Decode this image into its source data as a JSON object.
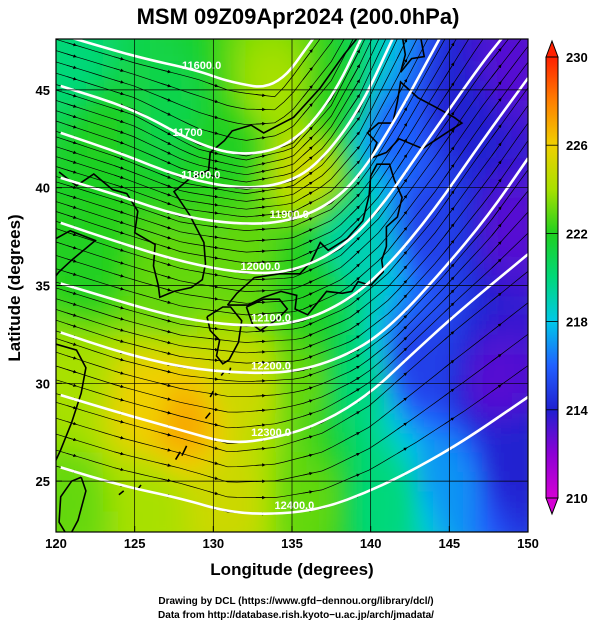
{
  "title": "MSM 09Z09Apr2024 (200.0hPa)",
  "xlabel": "Longitude (degrees)",
  "ylabel": "Latitude  (degrees)",
  "x_ticks": [
    120,
    125,
    130,
    135,
    140,
    145,
    150
  ],
  "y_ticks": [
    25,
    30,
    35,
    40,
    45
  ],
  "colorbar": {
    "ticks": [
      210,
      214,
      218,
      222,
      226,
      230
    ],
    "stops": [
      "#d400d4",
      "#8c00d4",
      "#2020d0",
      "#2060ff",
      "#00c8e8",
      "#00d87a",
      "#20d020",
      "#a8e000",
      "#f0d000",
      "#ff8000",
      "#ff2000"
    ]
  },
  "contour_labels": [
    "11600.0",
    "11700",
    "11800.0",
    "11900.0",
    "12000.0",
    "12100.0",
    "12200.0",
    "12300.0",
    "12400.0"
  ],
  "credits": {
    "line1": "Drawing by DCL (https://www.gfd−dennou.org/library/dcl/)",
    "line2": "Data from http://database.rish.kyoto−u.ac.jp/arch/jmadata/"
  },
  "chart_data": {
    "type": "heatmap",
    "title": "MSM 09Z09Apr2024 (200.0hPa)",
    "xlabel": "Longitude (degrees)",
    "ylabel": "Latitude  (degrees)",
    "xlim": [
      120,
      150
    ],
    "ylim": [
      22.4,
      47.6
    ],
    "colorbar_range": [
      210,
      230
    ],
    "grid": true,
    "temperature_samples": [
      {
        "lon": 121,
        "lat": 46,
        "t": 220
      },
      {
        "lon": 123,
        "lat": 43,
        "t": 222
      },
      {
        "lon": 127,
        "lat": 44,
        "t": 221
      },
      {
        "lon": 131,
        "lat": 42,
        "t": 222
      },
      {
        "lon": 134,
        "lat": 45,
        "t": 224
      },
      {
        "lon": 136,
        "lat": 41,
        "t": 225
      },
      {
        "lon": 138,
        "lat": 44,
        "t": 222
      },
      {
        "lon": 141,
        "lat": 43,
        "t": 216
      },
      {
        "lon": 146,
        "lat": 44,
        "t": 214
      },
      {
        "lon": 149,
        "lat": 46,
        "t": 213
      },
      {
        "lon": 122,
        "lat": 36,
        "t": 222
      },
      {
        "lon": 127,
        "lat": 35,
        "t": 223
      },
      {
        "lon": 132,
        "lat": 36,
        "t": 223
      },
      {
        "lon": 136,
        "lat": 35,
        "t": 222
      },
      {
        "lon": 139,
        "lat": 37,
        "t": 219
      },
      {
        "lon": 144,
        "lat": 38,
        "t": 215
      },
      {
        "lon": 149,
        "lat": 38,
        "t": 213
      },
      {
        "lon": 121,
        "lat": 30,
        "t": 224
      },
      {
        "lon": 126,
        "lat": 29,
        "t": 226
      },
      {
        "lon": 128,
        "lat": 28,
        "t": 227
      },
      {
        "lon": 132,
        "lat": 30,
        "t": 225
      },
      {
        "lon": 136,
        "lat": 30,
        "t": 223
      },
      {
        "lon": 139,
        "lat": 30,
        "t": 220
      },
      {
        "lon": 143,
        "lat": 31,
        "t": 215
      },
      {
        "lon": 148,
        "lat": 30,
        "t": 213
      },
      {
        "lon": 121,
        "lat": 24,
        "t": 223
      },
      {
        "lon": 126,
        "lat": 24,
        "t": 224
      },
      {
        "lon": 131,
        "lat": 24,
        "t": 225
      },
      {
        "lon": 136,
        "lat": 24,
        "t": 223
      },
      {
        "lon": 141,
        "lat": 24,
        "t": 220
      },
      {
        "lon": 145,
        "lat": 25,
        "t": 217
      },
      {
        "lon": 149,
        "lat": 26,
        "t": 214
      }
    ],
    "height_contours": [
      {
        "label": "11600.0",
        "pts": [
          [
            120.4,
            47.8
          ],
          [
            125,
            46.7
          ],
          [
            129,
            46
          ],
          [
            131,
            45.4
          ],
          [
            134,
            45
          ],
          [
            136.5,
            47.8
          ]
        ]
      },
      {
        "label": "11700",
        "pts": [
          [
            120.3,
            45.2
          ],
          [
            125,
            44
          ],
          [
            129,
            42.2
          ],
          [
            132,
            41.6
          ],
          [
            135,
            42.2
          ],
          [
            137.5,
            44.5
          ],
          [
            139.5,
            47.8
          ]
        ]
      },
      {
        "label": "11800.0",
        "pts": [
          [
            120.3,
            42.8
          ],
          [
            124,
            41.8
          ],
          [
            128,
            40.5
          ],
          [
            132,
            39.9
          ],
          [
            135,
            40.3
          ],
          [
            137,
            41.5
          ],
          [
            139.3,
            44
          ],
          [
            141.5,
            47.8
          ]
        ]
      },
      {
        "label": "11900.0",
        "pts": [
          [
            120.3,
            40.5
          ],
          [
            124,
            39.6
          ],
          [
            128,
            38.5
          ],
          [
            132,
            38.1
          ],
          [
            135,
            38.3
          ],
          [
            137.5,
            39.2
          ],
          [
            139.5,
            40.8
          ],
          [
            141.8,
            43.8
          ],
          [
            144.5,
            47.8
          ]
        ]
      },
      {
        "label": "12000.0",
        "pts": [
          [
            120.3,
            38.2
          ],
          [
            124,
            37.2
          ],
          [
            128,
            36.2
          ],
          [
            132,
            35.6
          ],
          [
            135,
            35.7
          ],
          [
            138,
            36.8
          ],
          [
            140.5,
            38.8
          ],
          [
            143.5,
            42.3
          ],
          [
            147,
            46.3
          ],
          [
            148.5,
            47.8
          ]
        ]
      },
      {
        "label": "12100.0",
        "pts": [
          [
            120.3,
            35.1
          ],
          [
            124,
            34.2
          ],
          [
            128,
            33.3
          ],
          [
            132,
            32.9
          ],
          [
            135.5,
            33.1
          ],
          [
            138.5,
            34.2
          ],
          [
            141,
            35.9
          ],
          [
            144,
            38.8
          ],
          [
            147,
            42.3
          ],
          [
            150,
            45.6
          ]
        ]
      },
      {
        "label": "12200.0",
        "pts": [
          [
            120.3,
            32.6
          ],
          [
            124,
            31.6
          ],
          [
            128,
            30.8
          ],
          [
            132,
            30.5
          ],
          [
            135.5,
            30.6
          ],
          [
            139,
            31.6
          ],
          [
            141.5,
            33.1
          ],
          [
            144.5,
            35.7
          ],
          [
            147.5,
            38.6
          ],
          [
            150,
            41.5
          ]
        ]
      },
      {
        "label": "12300.0",
        "pts": [
          [
            120.3,
            29.4
          ],
          [
            124,
            28.5
          ],
          [
            128,
            27.6
          ],
          [
            131,
            26.9
          ],
          [
            134,
            27.2
          ],
          [
            137,
            28
          ],
          [
            140,
            29.5
          ],
          [
            142.5,
            31.4
          ],
          [
            145.5,
            33.6
          ],
          [
            150,
            36.6
          ]
        ]
      },
      {
        "label": "12400.0",
        "pts": [
          [
            120.3,
            25.7
          ],
          [
            124,
            24.8
          ],
          [
            128,
            24.1
          ],
          [
            131,
            23.4
          ],
          [
            134,
            23.3
          ],
          [
            137,
            23.6
          ],
          [
            140,
            24.5
          ],
          [
            143,
            25.7
          ],
          [
            146,
            27.1
          ],
          [
            150,
            29.3
          ]
        ]
      }
    ]
  }
}
